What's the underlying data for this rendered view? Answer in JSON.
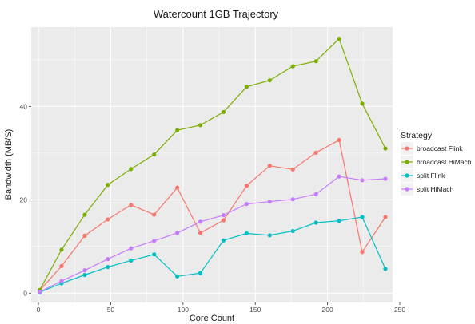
{
  "chart_data": {
    "type": "line",
    "title": "Watercount 1GB Trajectory",
    "xlabel": "Core Count",
    "ylabel": "Bandwidth (MB/S)",
    "xlim": [
      -5,
      245
    ],
    "ylim": [
      -2,
      57
    ],
    "xticks": [
      0,
      50,
      100,
      150,
      200,
      250
    ],
    "yticks": [
      0,
      20,
      40
    ],
    "grid": true,
    "legend_position": "right",
    "legend_title": "Strategy",
    "series": [
      {
        "name": "broadcast Flink",
        "color": "#F8766D",
        "x": [
          1,
          16,
          32,
          48,
          64,
          80,
          96,
          112,
          128,
          144,
          160,
          176,
          192,
          208,
          224,
          240
        ],
        "y": [
          0.6,
          5.8,
          12.3,
          15.8,
          18.9,
          16.8,
          22.6,
          12.9,
          15.6,
          23.0,
          27.3,
          26.5,
          30.1,
          32.8,
          8.8,
          16.3
        ]
      },
      {
        "name": "broadcast HiMach",
        "color": "#7CAE00",
        "x": [
          1,
          16,
          32,
          48,
          64,
          80,
          96,
          112,
          128,
          144,
          160,
          176,
          192,
          208,
          224,
          240
        ],
        "y": [
          0.7,
          9.3,
          16.8,
          23.2,
          26.6,
          29.7,
          34.9,
          36.0,
          38.8,
          44.2,
          45.6,
          48.6,
          49.7,
          54.5,
          40.6,
          31.0
        ]
      },
      {
        "name": "split Flink",
        "color": "#00BFC4",
        "x": [
          1,
          16,
          32,
          48,
          64,
          80,
          96,
          112,
          128,
          144,
          160,
          176,
          192,
          208,
          224,
          240
        ],
        "y": [
          0.2,
          2.1,
          3.9,
          5.6,
          7.0,
          8.3,
          3.6,
          4.3,
          11.3,
          12.8,
          12.4,
          13.3,
          15.1,
          15.5,
          16.3,
          5.2
        ]
      },
      {
        "name": "split HiMach",
        "color": "#C77CFF",
        "x": [
          1,
          16,
          32,
          48,
          64,
          80,
          96,
          112,
          128,
          144,
          160,
          176,
          192,
          208,
          224,
          240
        ],
        "y": [
          0.3,
          2.6,
          4.9,
          7.3,
          9.6,
          11.2,
          12.9,
          15.3,
          16.7,
          19.1,
          19.6,
          20.1,
          21.2,
          25.0,
          24.2,
          24.5
        ]
      }
    ]
  }
}
